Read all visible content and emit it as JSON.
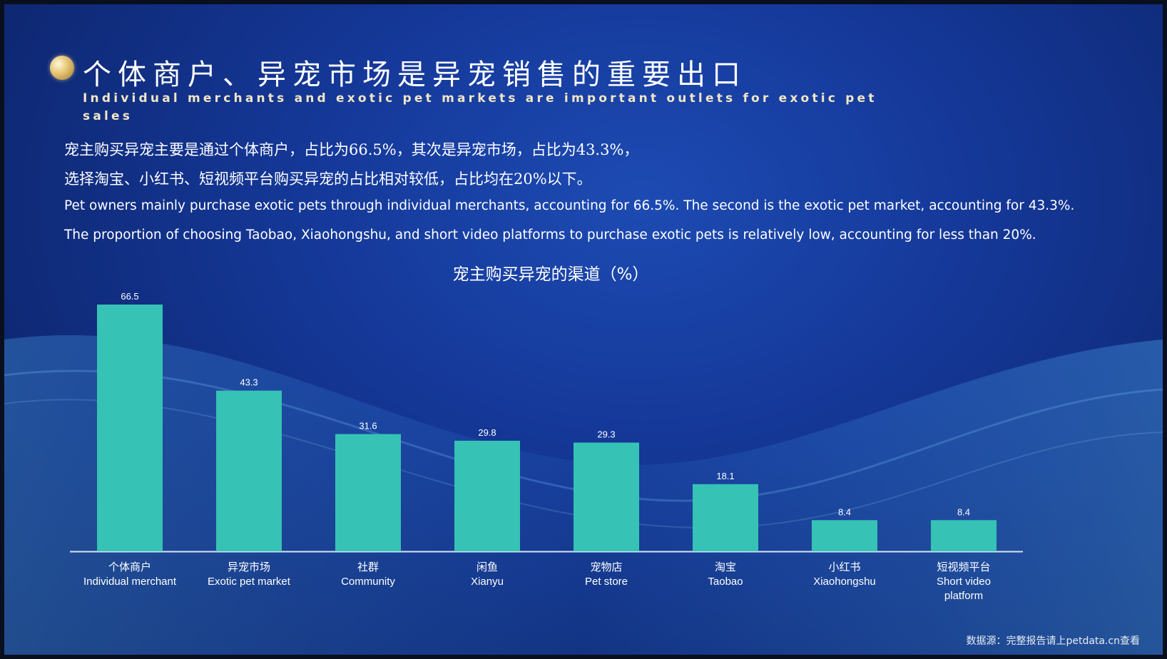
{
  "header": {
    "title_cn": "个体商户、异宠市场是异宠销售的重要出口",
    "title_en": "Individual merchants and exotic pet markets are important outlets for exotic pet sales"
  },
  "summary": {
    "cn_line1": "宠主购买异宠主要是通过个体商户，占比为66.5%，其次是异宠市场，占比为43.3%，",
    "cn_line2": "选择淘宝、小红书、短视频平台购买异宠的占比相对较低，占比均在20%以下。",
    "en_line1": "Pet owners mainly purchase exotic pets through individual merchants, accounting for 66.5%. The second is the exotic pet market, accounting for 43.3%.",
    "en_line2": "The proportion of choosing Taobao, Xiaohongshu, and short video platforms to purchase exotic pets is relatively low, accounting for less than 20%."
  },
  "chart_data": {
    "type": "bar",
    "title": "宠主购买异宠的渠道（%）",
    "categories": [
      {
        "cn": "个体商户",
        "en": [
          "Individual merchant"
        ]
      },
      {
        "cn": "异宠市场",
        "en": [
          "Exotic pet market"
        ]
      },
      {
        "cn": "社群",
        "en": [
          "Community"
        ]
      },
      {
        "cn": "闲鱼",
        "en": [
          "Xianyu"
        ]
      },
      {
        "cn": "宠物店",
        "en": [
          "Pet store"
        ]
      },
      {
        "cn": "淘宝",
        "en": [
          "Taobao"
        ]
      },
      {
        "cn": "小红书",
        "en": [
          "Xiaohongshu"
        ]
      },
      {
        "cn": "短视频平台",
        "en": [
          "Short video",
          "platform"
        ]
      }
    ],
    "values": [
      66.5,
      43.3,
      31.6,
      29.8,
      29.3,
      18.1,
      8.4,
      8.4
    ],
    "value_labels": [
      "66.5",
      "43.3",
      "31.6",
      "29.8",
      "29.3",
      "18.1",
      "8.4",
      "8.4"
    ],
    "bar_color": "#36c2b4",
    "grid": false
  },
  "footer": {
    "source": "数据源：完整报告请上petdata.cn查看"
  }
}
